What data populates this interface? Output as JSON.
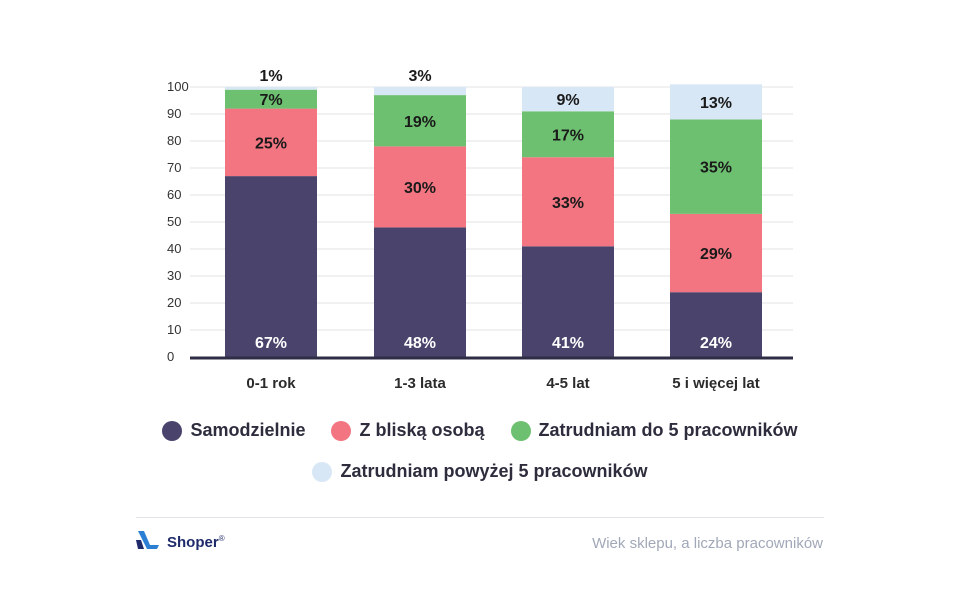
{
  "chart_data": {
    "type": "bar",
    "stacked": true,
    "categories": [
      "0-1 rok",
      "1-3 lata",
      "4-5 lat",
      "5 i więcej lat"
    ],
    "yticks": [
      "0",
      "10",
      "20",
      "30",
      "40",
      "50",
      "60",
      "70",
      "80",
      "90",
      "100"
    ],
    "ylim": [
      0,
      100
    ],
    "grid": true,
    "legend_position": "bottom",
    "series": [
      {
        "name": "Samodzielnie",
        "color": "#4a436b",
        "label_color": "#ffffff",
        "values": [
          67,
          48,
          41,
          24
        ],
        "labels": [
          "67%",
          "48%",
          "41%",
          "24%"
        ]
      },
      {
        "name": "Z bliską osobą",
        "color": "#f27581",
        "label_color": "#1a1a1a",
        "values": [
          25,
          30,
          33,
          29
        ],
        "labels": [
          "25%",
          "30%",
          "33%",
          "29%"
        ]
      },
      {
        "name": "Zatrudniam do 5 pracowników",
        "color": "#6ec071",
        "label_color": "#1a1a1a",
        "values": [
          7,
          19,
          17,
          35
        ],
        "labels": [
          "7%",
          "19%",
          "17%",
          "35%"
        ]
      },
      {
        "name": "Zatrudniam powyżej 5 pracowników",
        "color": "#d7e7f5",
        "label_color": "#1a1a1a",
        "values": [
          1,
          3,
          9,
          13
        ],
        "labels": [
          "1%",
          "3%",
          "9%",
          "13%"
        ]
      }
    ]
  },
  "footer": {
    "brand": "Shoper",
    "brand_mark": "®",
    "caption": "Wiek sklepu, a liczba pracowników"
  }
}
